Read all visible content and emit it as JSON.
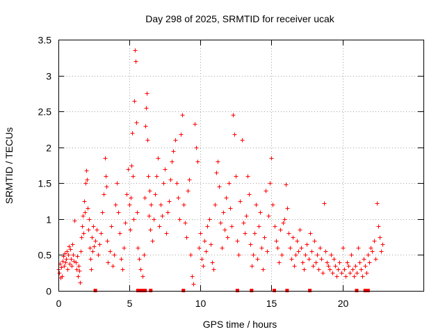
{
  "chart_data": {
    "type": "scatter",
    "title": "Day 298 of 2025, SRMTID for receiver ucak",
    "xlabel": "GPS time / hours",
    "ylabel": "SRMTID / TECUs",
    "xlim": [
      0,
      25.7
    ],
    "ylim": [
      0,
      3.5
    ],
    "xticks": [
      0,
      5,
      10,
      15,
      20
    ],
    "xtick_labels": [
      "0",
      "5",
      "10",
      "15",
      "20"
    ],
    "yticks": [
      0,
      0.5,
      1,
      1.5,
      2,
      2.5,
      3,
      3.5
    ],
    "ytick_labels": [
      "0",
      "0.5",
      "1",
      "1.5",
      "2",
      "2.5",
      "3",
      "3.5"
    ],
    "grid": true,
    "marker": "plus",
    "color": "#ff0000",
    "data_gap_markers_x": [
      2.6,
      5.6,
      5.7,
      5.8,
      5.9,
      6.0,
      6.1,
      6.5,
      8.8,
      12.6,
      13.6,
      15.2,
      16.1,
      17.7,
      21.0,
      21.6,
      21.8
    ],
    "series": [
      {
        "name": "SRMTID",
        "x": [
          0.0,
          0.05,
          0.1,
          0.15,
          0.2,
          0.25,
          0.3,
          0.35,
          0.4,
          0.45,
          0.5,
          0.55,
          0.6,
          0.65,
          0.7,
          0.75,
          0.8,
          0.85,
          0.9,
          0.95,
          1.0,
          1.05,
          1.1,
          1.15,
          1.2,
          1.25,
          1.3,
          1.35,
          1.4,
          1.45,
          1.5,
          1.55,
          1.6,
          1.65,
          1.7,
          1.75,
          1.8,
          1.85,
          1.9,
          1.95,
          2.0,
          2.05,
          2.1,
          2.15,
          2.2,
          2.25,
          2.3,
          2.35,
          2.4,
          2.45,
          2.5,
          2.6,
          2.7,
          2.8,
          2.9,
          3.0,
          3.1,
          3.2,
          3.3,
          3.35,
          3.4,
          3.45,
          3.5,
          3.6,
          3.7,
          3.8,
          3.9,
          4.0,
          4.1,
          4.2,
          4.3,
          4.4,
          4.5,
          4.6,
          4.7,
          4.8,
          4.9,
          5.0,
          5.05,
          5.1,
          5.15,
          5.2,
          5.25,
          5.3,
          5.35,
          5.4,
          5.45,
          5.5,
          5.55,
          5.6,
          5.7,
          5.8,
          5.9,
          6.0,
          6.05,
          6.1,
          6.15,
          6.2,
          6.25,
          6.3,
          6.35,
          6.4,
          6.45,
          6.5,
          6.6,
          6.7,
          6.8,
          6.9,
          7.0,
          7.1,
          7.2,
          7.3,
          7.4,
          7.5,
          7.6,
          7.7,
          7.8,
          7.9,
          8.0,
          8.1,
          8.2,
          8.3,
          8.4,
          8.5,
          8.6,
          8.7,
          8.8,
          8.9,
          9.0,
          9.1,
          9.2,
          9.3,
          9.4,
          9.5,
          9.6,
          9.7,
          9.8,
          9.9,
          10.0,
          10.1,
          10.2,
          10.3,
          10.4,
          10.5,
          10.6,
          10.7,
          10.8,
          10.9,
          11.0,
          11.1,
          11.2,
          11.3,
          11.4,
          11.5,
          11.6,
          11.7,
          11.8,
          11.9,
          12.0,
          12.1,
          12.2,
          12.3,
          12.4,
          12.5,
          12.6,
          12.7,
          12.8,
          12.9,
          13.0,
          13.1,
          13.2,
          13.3,
          13.4,
          13.5,
          13.6,
          13.7,
          13.8,
          13.9,
          14.0,
          14.1,
          14.2,
          14.3,
          14.4,
          14.5,
          14.6,
          14.7,
          14.8,
          14.9,
          15.0,
          15.1,
          15.2,
          15.3,
          15.4,
          15.5,
          15.6,
          15.7,
          15.8,
          15.9,
          16.0,
          16.1,
          16.2,
          16.3,
          16.4,
          16.5,
          16.6,
          16.7,
          16.8,
          16.9,
          17.0,
          17.1,
          17.2,
          17.3,
          17.4,
          17.5,
          17.6,
          17.7,
          17.8,
          17.9,
          18.0,
          18.1,
          18.2,
          18.3,
          18.4,
          18.5,
          18.6,
          18.7,
          18.8,
          18.9,
          19.0,
          19.1,
          19.2,
          19.3,
          19.4,
          19.5,
          19.6,
          19.7,
          19.8,
          19.9,
          20.0,
          20.1,
          20.2,
          20.3,
          20.4,
          20.5,
          20.6,
          20.7,
          20.8,
          20.9,
          21.0,
          21.1,
          21.2,
          21.3,
          21.4,
          21.5,
          21.6,
          21.7,
          21.8,
          21.9,
          22.0,
          22.1,
          22.2,
          22.3,
          22.4,
          22.5,
          22.6,
          22.7,
          22.8
        ],
        "y": [
          0.3,
          0.25,
          0.38,
          0.18,
          0.33,
          0.2,
          0.42,
          0.48,
          0.35,
          0.52,
          0.4,
          0.45,
          0.55,
          0.3,
          0.5,
          0.62,
          0.38,
          0.58,
          0.45,
          0.35,
          0.65,
          0.5,
          0.42,
          0.98,
          0.4,
          0.3,
          0.48,
          0.2,
          0.35,
          0.28,
          0.12,
          0.55,
          0.75,
          0.9,
          1.05,
          0.8,
          1.25,
          1.1,
          1.5,
          1.68,
          1.55,
          1.15,
          0.85,
          1.0,
          0.6,
          0.45,
          0.3,
          0.75,
          0.55,
          0.9,
          0.62,
          0.7,
          0.85,
          0.5,
          0.65,
          0.8,
          1.1,
          1.35,
          1.85,
          1.6,
          1.45,
          0.7,
          0.4,
          0.55,
          0.9,
          0.35,
          0.5,
          1.2,
          1.5,
          1.1,
          0.8,
          0.45,
          0.3,
          0.6,
          0.95,
          1.35,
          1.7,
          1.2,
          0.85,
          1.3,
          1.75,
          2.2,
          1.6,
          1.0,
          2.65,
          3.35,
          3.2,
          2.35,
          1.1,
          0.6,
          0.45,
          0.3,
          0.2,
          0.5,
          1.3,
          2.3,
          2.55,
          2.75,
          2.1,
          1.6,
          1.05,
          1.4,
          0.85,
          1.2,
          0.7,
          1.0,
          1.35,
          1.6,
          1.85,
          0.9,
          1.2,
          1.05,
          1.5,
          1.7,
          0.8,
          1.1,
          1.25,
          1.55,
          1.8,
          1.95,
          2.1,
          1.5,
          1.3,
          1.0,
          2.18,
          2.45,
          1.2,
          0.95,
          0.75,
          1.4,
          1.55,
          0.5,
          0.2,
          0.1,
          2.33,
          2.0,
          1.8,
          0.6,
          0.8,
          0.45,
          0.35,
          0.7,
          0.55,
          0.9,
          1.0,
          0.65,
          0.4,
          0.3,
          1.2,
          1.65,
          1.8,
          1.45,
          0.95,
          0.6,
          1.1,
          0.85,
          1.3,
          0.75,
          1.5,
          1.15,
          0.9,
          2.45,
          2.18,
          1.6,
          0.7,
          0.5,
          1.25,
          2.1,
          0.95,
          0.8,
          1.05,
          1.6,
          1.35,
          0.65,
          0.35,
          0.5,
          0.8,
          1.2,
          0.45,
          0.9,
          1.1,
          0.6,
          0.3,
          0.75,
          1.4,
          0.55,
          1.05,
          1.5,
          1.85,
          1.2,
          0.9,
          0.7,
          0.6,
          0.4,
          0.85,
          0.5,
          0.95,
          1.0,
          1.48,
          1.15,
          0.8,
          0.6,
          0.45,
          0.75,
          0.35,
          0.5,
          0.7,
          0.55,
          0.85,
          0.6,
          0.4,
          0.3,
          0.5,
          0.65,
          0.45,
          0.8,
          0.55,
          0.35,
          0.7,
          0.4,
          0.5,
          0.3,
          0.6,
          0.45,
          0.25,
          1.22,
          0.55,
          0.4,
          0.35,
          0.3,
          0.5,
          0.25,
          0.45,
          0.35,
          0.2,
          0.3,
          0.4,
          0.25,
          0.6,
          0.3,
          0.2,
          0.4,
          0.35,
          0.25,
          0.5,
          0.3,
          0.2,
          0.35,
          0.25,
          0.6,
          0.4,
          0.3,
          0.2,
          0.45,
          0.35,
          0.25,
          0.5,
          0.4,
          0.6,
          0.55,
          0.7,
          0.45,
          1.22,
          0.9,
          0.75,
          0.55,
          0.65
        ]
      }
    ]
  }
}
